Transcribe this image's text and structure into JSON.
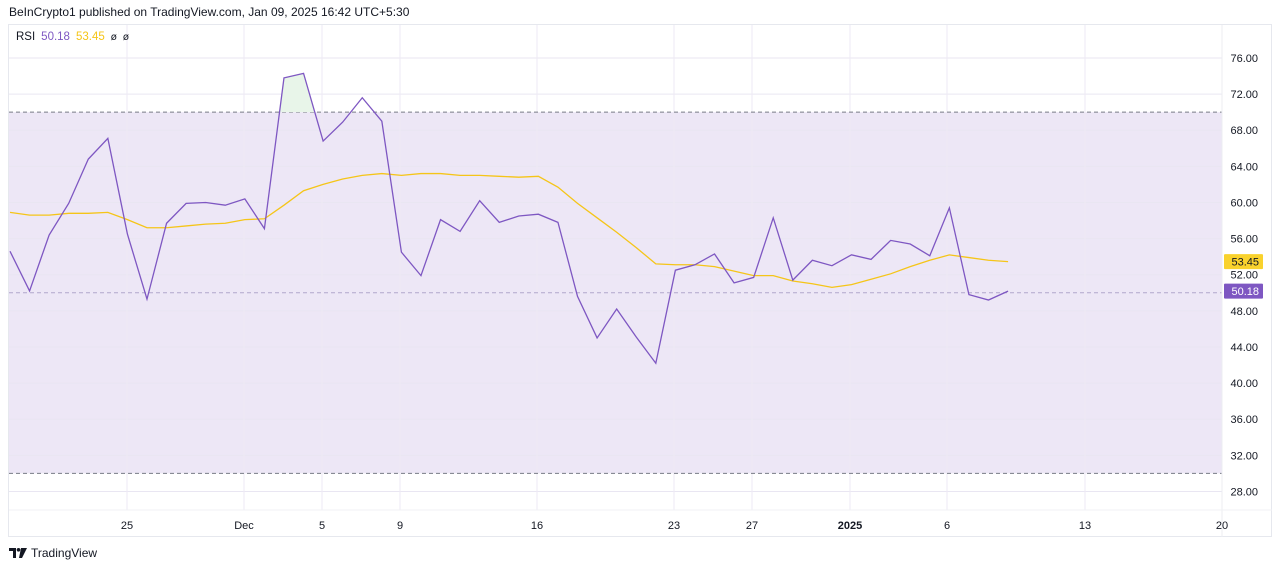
{
  "header": {
    "attribution": "BeInCrypto1 published on TradingView.com, Jan 09, 2025 16:42 UTC+5:30"
  },
  "legend": {
    "name": "RSI",
    "rsi_value": "50.18",
    "ma_value": "53.45",
    "na1": "ø",
    "na2": "ø"
  },
  "footer": {
    "brand": "TradingView"
  },
  "colors": {
    "rsi": "#7e57c2",
    "ma": "#f5c518",
    "band": "#ede7f6",
    "overbought_fill": "#e8f5e9"
  },
  "price_labels": {
    "rsi": "50.18",
    "ma": "53.45"
  },
  "chart_data": {
    "type": "line",
    "title": "RSI",
    "xlabel": "",
    "ylabel": "",
    "ylim": [
      26,
      78
    ],
    "grid": true,
    "y_ticks": [
      "76.00",
      "72.00",
      "68.00",
      "64.00",
      "60.00",
      "56.00",
      "52.00",
      "48.00",
      "44.00",
      "40.00",
      "36.00",
      "32.00",
      "28.00"
    ],
    "x_tick_labels": [
      "25",
      "Dec",
      "5",
      "9",
      "16",
      "23",
      "27",
      "2025",
      "6",
      "13",
      "20"
    ],
    "bands": {
      "upper": 70,
      "middle": 50,
      "lower": 30
    },
    "x": [
      "Nov 19",
      "Nov 20",
      "Nov 21",
      "Nov 22",
      "Nov 23",
      "Nov 24",
      "Nov 25",
      "Nov 26",
      "Nov 27",
      "Nov 28",
      "Nov 29",
      "Nov 30",
      "Dec 1",
      "Dec 2",
      "Dec 3",
      "Dec 4",
      "Dec 5",
      "Dec 6",
      "Dec 7",
      "Dec 8",
      "Dec 9",
      "Dec 10",
      "Dec 11",
      "Dec 12",
      "Dec 13",
      "Dec 14",
      "Dec 15",
      "Dec 16",
      "Dec 17",
      "Dec 18",
      "Dec 19",
      "Dec 20",
      "Dec 21",
      "Dec 22",
      "Dec 23",
      "Dec 24",
      "Dec 25",
      "Dec 26",
      "Dec 27",
      "Dec 28",
      "Dec 29",
      "Dec 30",
      "Dec 31",
      "Jan 1",
      "Jan 2",
      "Jan 3",
      "Jan 4",
      "Jan 5",
      "Jan 6",
      "Jan 7",
      "Jan 8",
      "Jan 9"
    ],
    "series": [
      {
        "name": "RSI",
        "color": "#7e57c2",
        "values": [
          54.6,
          50.2,
          56.4,
          59.9,
          64.8,
          67.1,
          56.5,
          49.3,
          57.7,
          59.9,
          60.0,
          59.7,
          60.4,
          57.1,
          73.8,
          74.3,
          66.8,
          68.9,
          71.6,
          69.0,
          54.5,
          51.9,
          58.1,
          56.8,
          60.2,
          57.8,
          58.5,
          58.7,
          57.8,
          49.6,
          45.0,
          48.2,
          45.1,
          42.2,
          52.5,
          53.1,
          54.3,
          51.1,
          51.7,
          58.3,
          51.4,
          53.6,
          53.0,
          54.2,
          53.7,
          55.8,
          55.4,
          54.1,
          59.4,
          49.8,
          49.2,
          50.18
        ]
      },
      {
        "name": "RSI-based MA",
        "color": "#f5c518",
        "values": [
          58.9,
          58.6,
          58.6,
          58.8,
          58.8,
          58.9,
          58.1,
          57.2,
          57.2,
          57.4,
          57.6,
          57.7,
          58.1,
          58.2,
          59.7,
          61.3,
          62.0,
          62.6,
          63.0,
          63.2,
          63.0,
          63.2,
          63.2,
          63.0,
          63.0,
          62.9,
          62.8,
          62.9,
          61.7,
          59.9,
          58.3,
          56.7,
          55.0,
          53.2,
          53.1,
          53.1,
          52.9,
          52.4,
          51.9,
          51.9,
          51.3,
          51.0,
          50.6,
          50.9,
          51.5,
          52.1,
          52.9,
          53.6,
          54.2,
          53.9,
          53.6,
          53.45
        ]
      }
    ]
  }
}
